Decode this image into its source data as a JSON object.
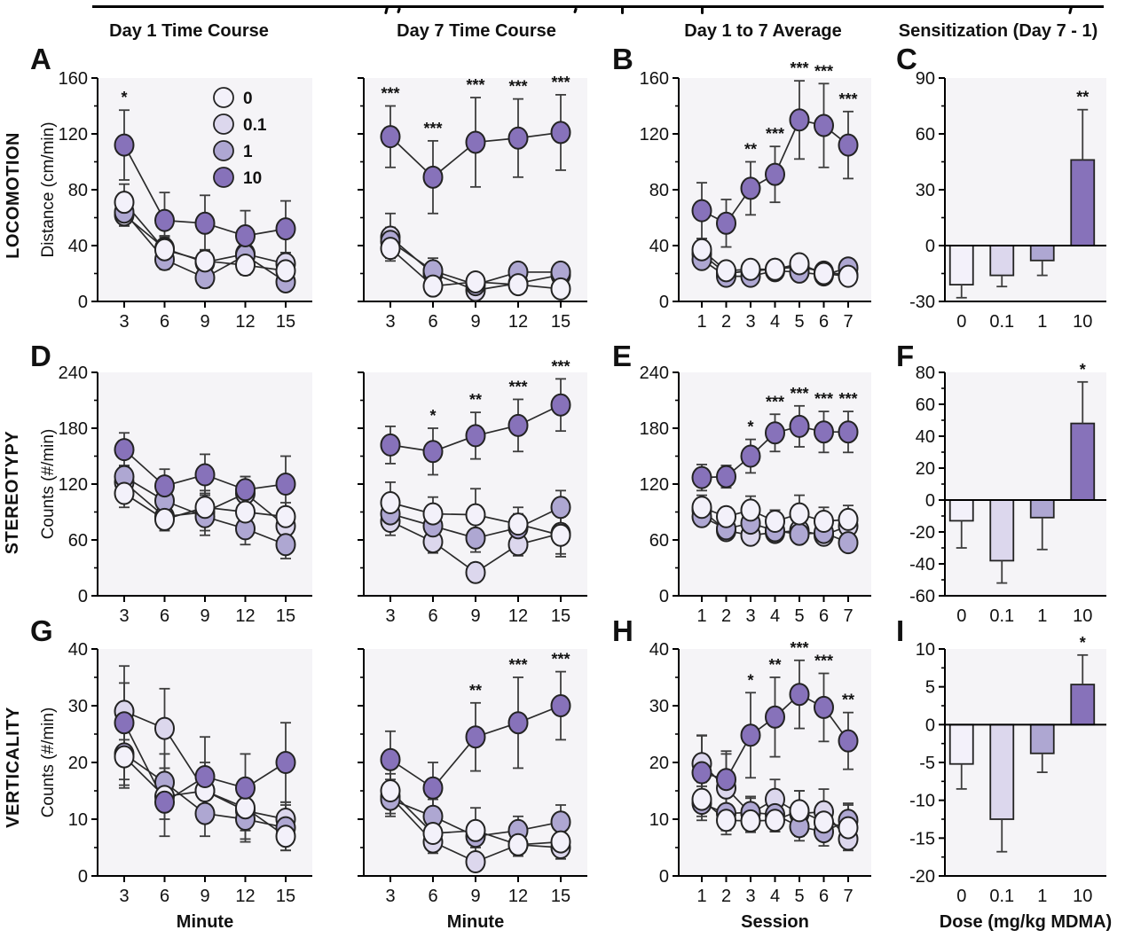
{
  "column_headers": [
    "Day 1 Time Course",
    "Day 7 Time Course",
    "Day 1 to 7 Average",
    "Sensitization (Day 7 - 1)"
  ],
  "row_labels": [
    "LOCOMOTION",
    "STEREOTYPY",
    "VERTICALITY"
  ],
  "row_ylabels": [
    "Distance (cm/min)",
    "Counts (#/min)",
    "Counts (#/min)"
  ],
  "doses": [
    {
      "label": "0",
      "color": "#f3f1fa"
    },
    {
      "label": "0.1",
      "color": "#dcd7ed"
    },
    {
      "label": "1",
      "color": "#aea7d2"
    },
    {
      "label": "10",
      "color": "#8772ba"
    }
  ],
  "colors": {
    "outline": "#232323",
    "line": "#2b2b2b",
    "error_bar": "#3d3d3d",
    "plot_bg": "#f5f4f7",
    "axis": "#000000",
    "text": "#111111"
  },
  "chart_data": [
    {
      "id": "A",
      "row": 0,
      "col": 0,
      "type": "line",
      "legend": true,
      "x": [
        3,
        6,
        9,
        12,
        15
      ],
      "ylim": [
        0,
        160
      ],
      "yticks": [
        0,
        40,
        80,
        120,
        160
      ],
      "xlabel": "",
      "series": [
        {
          "dose": "0",
          "values": [
            71,
            37,
            29,
            26,
            22
          ],
          "err": [
            13,
            10,
            8,
            7,
            8
          ]
        },
        {
          "dose": "0.1",
          "values": [
            62,
            38,
            28,
            34,
            27
          ],
          "err": [
            8,
            8,
            8,
            8,
            8
          ]
        },
        {
          "dose": "1",
          "values": [
            64,
            30,
            17,
            33,
            14
          ],
          "err": [
            8,
            7,
            7,
            8,
            6
          ]
        },
        {
          "dose": "10",
          "values": [
            112,
            58,
            56,
            47,
            52
          ],
          "err": [
            25,
            20,
            20,
            18,
            20
          ]
        }
      ],
      "sig_series": "10",
      "sig": [
        "*",
        "",
        "",
        "",
        ""
      ]
    },
    {
      "id": "",
      "row": 0,
      "col": 1,
      "type": "line",
      "x": [
        3,
        6,
        9,
        12,
        15
      ],
      "ylim": [
        0,
        160
      ],
      "yticks": [
        0,
        40,
        80,
        120,
        160
      ],
      "xlabel": "",
      "series": [
        {
          "dose": "0",
          "values": [
            38,
            11,
            14,
            12,
            9
          ],
          "err": [
            7,
            4,
            4,
            4,
            4
          ]
        },
        {
          "dose": "0.1",
          "values": [
            46,
            20,
            8,
            13,
            19
          ],
          "err": [
            17,
            5,
            4,
            4,
            5
          ]
        },
        {
          "dose": "1",
          "values": [
            43,
            22,
            12,
            21,
            21
          ],
          "err": [
            10,
            9,
            5,
            4,
            5
          ]
        },
        {
          "dose": "10",
          "values": [
            118,
            89,
            114,
            117,
            121
          ],
          "err": [
            22,
            26,
            32,
            28,
            27
          ]
        }
      ],
      "sig_series": "10",
      "sig": [
        "***",
        "***",
        "***",
        "***",
        "***"
      ]
    },
    {
      "id": "B",
      "row": 0,
      "col": 2,
      "type": "line",
      "x": [
        1,
        2,
        3,
        4,
        5,
        6,
        7
      ],
      "ylim": [
        0,
        160
      ],
      "yticks": [
        0,
        40,
        80,
        120,
        160
      ],
      "xlabel": "",
      "series": [
        {
          "dose": "0",
          "values": [
            37,
            22,
            23,
            23,
            27,
            20,
            18
          ],
          "err": [
            8,
            5,
            4,
            4,
            6,
            4,
            4
          ]
        },
        {
          "dose": "0.1",
          "values": [
            34,
            20,
            22,
            23,
            25,
            21,
            19
          ],
          "err": [
            6,
            4,
            4,
            4,
            5,
            4,
            4
          ]
        },
        {
          "dose": "1",
          "values": [
            30,
            18,
            18,
            22,
            21,
            19,
            24
          ],
          "err": [
            5,
            4,
            4,
            4,
            4,
            4,
            4
          ]
        },
        {
          "dose": "10",
          "values": [
            65,
            56,
            81,
            91,
            130,
            126,
            112
          ],
          "err": [
            20,
            17,
            19,
            20,
            28,
            30,
            24
          ]
        }
      ],
      "sig_series": "10",
      "sig": [
        "",
        "",
        "**",
        "***",
        "***",
        "***",
        "***"
      ]
    },
    {
      "id": "C",
      "row": 0,
      "col": 3,
      "type": "bar",
      "x": [
        "0",
        "0.1",
        "1",
        "10"
      ],
      "ylim": [
        -30,
        90
      ],
      "yticks": [
        -30,
        0,
        30,
        60,
        90
      ],
      "xlabel": "",
      "values": [
        -21,
        -16,
        -8,
        46
      ],
      "err": [
        7,
        6,
        8,
        27
      ],
      "sig": [
        "",
        "",
        "",
        "**"
      ]
    },
    {
      "id": "D",
      "row": 1,
      "col": 0,
      "type": "line",
      "x": [
        3,
        6,
        9,
        12,
        15
      ],
      "ylim": [
        0,
        240
      ],
      "yticks": [
        0,
        60,
        120,
        180,
        240
      ],
      "xlabel": "",
      "series": [
        {
          "dose": "0",
          "values": [
            110,
            82,
            95,
            90,
            85
          ],
          "err": [
            15,
            12,
            18,
            15,
            15
          ]
        },
        {
          "dose": "0.1",
          "values": [
            122,
            85,
            90,
            110,
            75
          ],
          "err": [
            15,
            15,
            20,
            18,
            12
          ]
        },
        {
          "dose": "1",
          "values": [
            128,
            102,
            85,
            72,
            55
          ],
          "err": [
            12,
            12,
            20,
            17,
            15
          ]
        },
        {
          "dose": "10",
          "values": [
            157,
            118,
            130,
            114,
            120
          ],
          "err": [
            18,
            18,
            22,
            14,
            30
          ]
        }
      ],
      "sig_series": "10",
      "sig": [
        "",
        "",
        "",
        "",
        ""
      ]
    },
    {
      "id": "",
      "row": 1,
      "col": 1,
      "type": "line",
      "x": [
        3,
        6,
        9,
        12,
        15
      ],
      "ylim": [
        0,
        240
      ],
      "yticks": [
        0,
        60,
        120,
        180,
        240
      ],
      "xlabel": "",
      "series": [
        {
          "dose": "0",
          "values": [
            100,
            88,
            87,
            77,
            65
          ],
          "err": [
            22,
            18,
            28,
            18,
            20
          ]
        },
        {
          "dose": "0.1",
          "values": [
            80,
            58,
            25,
            55,
            67
          ],
          "err": [
            15,
            12,
            10,
            12,
            25
          ]
        },
        {
          "dose": "1",
          "values": [
            88,
            75,
            62,
            73,
            95
          ],
          "err": [
            15,
            15,
            15,
            15,
            18
          ]
        },
        {
          "dose": "10",
          "values": [
            162,
            155,
            172,
            183,
            205
          ],
          "err": [
            20,
            25,
            25,
            28,
            28
          ]
        }
      ],
      "sig_series": "10",
      "sig": [
        "",
        "*",
        "**",
        "***",
        "***"
      ]
    },
    {
      "id": "E",
      "row": 1,
      "col": 2,
      "type": "line",
      "x": [
        1,
        2,
        3,
        4,
        5,
        6,
        7
      ],
      "ylim": [
        0,
        240
      ],
      "yticks": [
        0,
        60,
        120,
        180,
        240
      ],
      "xlabel": "",
      "series": [
        {
          "dose": "0",
          "values": [
            95,
            85,
            92,
            80,
            88,
            80,
            82
          ],
          "err": [
            13,
            10,
            15,
            12,
            20,
            15,
            15
          ]
        },
        {
          "dose": "0.1",
          "values": [
            92,
            70,
            65,
            68,
            70,
            65,
            75
          ],
          "err": [
            10,
            8,
            8,
            8,
            8,
            8,
            10
          ]
        },
        {
          "dose": "1",
          "values": [
            85,
            72,
            78,
            70,
            66,
            68,
            57
          ],
          "err": [
            10,
            8,
            8,
            8,
            8,
            8,
            8
          ]
        },
        {
          "dose": "10",
          "values": [
            127,
            128,
            150,
            175,
            182,
            176,
            176
          ],
          "err": [
            14,
            12,
            18,
            20,
            22,
            22,
            22
          ]
        }
      ],
      "sig_series": "10",
      "sig": [
        "",
        "",
        "*",
        "***",
        "***",
        "***",
        "***"
      ]
    },
    {
      "id": "F",
      "row": 1,
      "col": 3,
      "type": "bar",
      "x": [
        "0",
        "0.1",
        "1",
        "10"
      ],
      "ylim": [
        -60,
        80
      ],
      "yticks": [
        -60,
        -40,
        -20,
        0,
        20,
        40,
        60,
        80
      ],
      "xlabel": "",
      "values": [
        -13,
        -38,
        -11,
        48
      ],
      "err": [
        17,
        14,
        20,
        26
      ],
      "sig": [
        "",
        "",
        "",
        "*"
      ]
    },
    {
      "id": "G",
      "row": 2,
      "col": 0,
      "type": "line",
      "x": [
        3,
        6,
        9,
        12,
        15
      ],
      "ylim": [
        0,
        40
      ],
      "yticks": [
        0,
        10,
        20,
        30,
        40
      ],
      "xlabel": "Minute",
      "series": [
        {
          "dose": "0",
          "values": [
            21,
            14,
            15,
            12,
            7
          ],
          "err": [
            5,
            4,
            4,
            4,
            2.5
          ]
        },
        {
          "dose": "0.1",
          "values": [
            29,
            26,
            15,
            11.5,
            10
          ],
          "err": [
            5,
            7,
            5,
            5,
            3
          ]
        },
        {
          "dose": "1",
          "values": [
            21.5,
            16.5,
            11,
            10,
            8.5
          ],
          "err": [
            6,
            5,
            4,
            4,
            4
          ]
        },
        {
          "dose": "10",
          "values": [
            27,
            13,
            17.5,
            15.5,
            20
          ],
          "err": [
            10,
            6,
            7,
            6,
            7
          ]
        }
      ],
      "sig_series": "10",
      "sig": [
        "",
        "",
        "",
        "",
        ""
      ]
    },
    {
      "id": "",
      "row": 2,
      "col": 1,
      "type": "line",
      "x": [
        3,
        6,
        9,
        12,
        15
      ],
      "ylim": [
        0,
        40
      ],
      "yticks": [
        0,
        10,
        20,
        30,
        40
      ],
      "xlabel": "Minute",
      "series": [
        {
          "dose": "0",
          "values": [
            15,
            7.5,
            8,
            5.5,
            6
          ],
          "err": [
            3,
            2,
            4,
            2,
            2
          ]
        },
        {
          "dose": "0.1",
          "values": [
            14,
            6,
            2.5,
            5.5,
            5
          ],
          "err": [
            3,
            2,
            1.5,
            2,
            2
          ]
        },
        {
          "dose": "1",
          "values": [
            13.5,
            10.5,
            7,
            8,
            9.5
          ],
          "err": [
            3,
            3,
            2,
            2.5,
            3
          ]
        },
        {
          "dose": "10",
          "values": [
            20.5,
            15.5,
            24.5,
            27,
            30
          ],
          "err": [
            5,
            4.5,
            6,
            8,
            6
          ]
        }
      ],
      "sig_series": "10",
      "sig": [
        "",
        "",
        "**",
        "***",
        "***"
      ]
    },
    {
      "id": "H",
      "row": 2,
      "col": 2,
      "type": "line",
      "x": [
        1,
        2,
        3,
        4,
        5,
        6,
        7
      ],
      "ylim": [
        0,
        40
      ],
      "yticks": [
        0,
        10,
        20,
        30,
        40
      ],
      "xlabel": "Session",
      "series": [
        {
          "dose": "0",
          "values": [
            13.5,
            9.8,
            9.7,
            9.8,
            11.5,
            9.5,
            8.5
          ],
          "err": [
            3,
            2.5,
            2,
            2,
            3.5,
            3,
            4
          ]
        },
        {
          "dose": "0.1",
          "values": [
            19.8,
            15.5,
            11,
            13.5,
            11,
            11.3,
            6.5
          ],
          "err": [
            5,
            6,
            3,
            3.5,
            4,
            4,
            2
          ]
        },
        {
          "dose": "1",
          "values": [
            12.8,
            11,
            11.2,
            10.8,
            8.7,
            7.8,
            9.8
          ],
          "err": [
            3,
            3,
            2.5,
            3,
            2.5,
            2.5,
            3
          ]
        },
        {
          "dose": "10",
          "values": [
            18.2,
            17,
            24.8,
            28,
            32,
            29.7,
            23.8
          ],
          "err": [
            6.5,
            5,
            7.5,
            7,
            6,
            6,
            5
          ]
        }
      ],
      "sig_series": "10",
      "sig": [
        "",
        "",
        "*",
        "**",
        "***",
        "***",
        "**"
      ]
    },
    {
      "id": "I",
      "row": 2,
      "col": 3,
      "type": "bar",
      "x": [
        "0",
        "0.1",
        "1",
        "10"
      ],
      "ylim": [
        -20,
        10
      ],
      "yticks": [
        -20,
        -15,
        -10,
        -5,
        0,
        5,
        10
      ],
      "xlabel": "Dose (mg/kg MDMA)",
      "values": [
        -5.2,
        -12.5,
        -3.8,
        5.3
      ],
      "err": [
        3.3,
        4.3,
        2.5,
        3.9
      ],
      "sig": [
        "",
        "",
        "",
        "*"
      ]
    }
  ]
}
